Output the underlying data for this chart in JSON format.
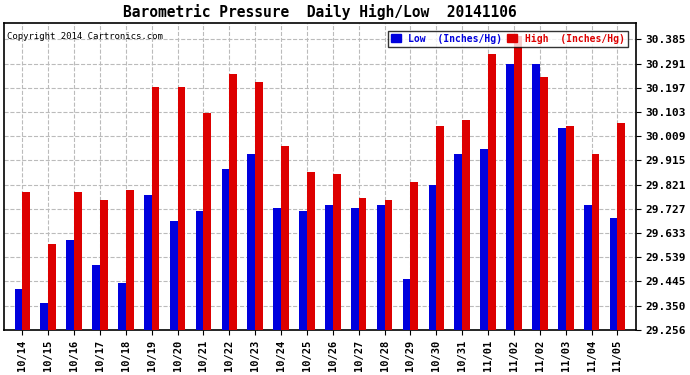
{
  "title": "Barometric Pressure  Daily High/Low  20141106",
  "copyright": "Copyright 2014 Cartronics.com",
  "legend_low": "Low  (Inches/Hg)",
  "legend_high": "High  (Inches/Hg)",
  "dates": [
    "10/14",
    "10/15",
    "10/16",
    "10/17",
    "10/18",
    "10/19",
    "10/20",
    "10/21",
    "10/22",
    "10/23",
    "10/24",
    "10/25",
    "10/26",
    "10/27",
    "10/28",
    "10/29",
    "10/30",
    "10/31",
    "11/01",
    "11/02",
    "11/02",
    "11/03",
    "11/04",
    "11/05"
  ],
  "low_values": [
    29.415,
    29.36,
    29.605,
    29.51,
    29.44,
    29.78,
    29.68,
    29.72,
    29.88,
    29.94,
    29.73,
    29.72,
    29.74,
    29.73,
    29.74,
    29.455,
    29.82,
    29.94,
    29.96,
    30.29,
    30.29,
    30.04,
    29.74,
    29.69
  ],
  "high_values": [
    29.79,
    29.59,
    29.79,
    29.76,
    29.8,
    30.2,
    30.2,
    30.1,
    30.25,
    30.22,
    29.97,
    29.87,
    29.86,
    29.77,
    29.76,
    29.83,
    30.05,
    30.07,
    30.33,
    30.4,
    30.24,
    30.05,
    29.94,
    30.06
  ],
  "ylim_min": 29.256,
  "ylim_max": 30.45,
  "yticks": [
    29.256,
    29.35,
    29.445,
    29.539,
    29.633,
    29.727,
    29.821,
    29.915,
    30.009,
    30.103,
    30.197,
    30.291,
    30.385
  ],
  "low_color": "#0000dd",
  "high_color": "#dd0000",
  "bg_color": "#ffffff",
  "grid_color": "#bbbbbb",
  "bar_width": 0.3,
  "figsize": [
    6.9,
    3.75
  ],
  "dpi": 100
}
